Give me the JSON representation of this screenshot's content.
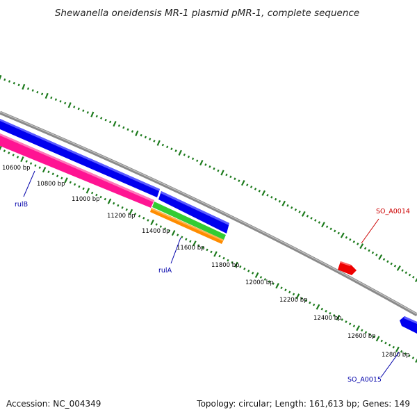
{
  "header": {
    "title": "Shewanella oneidensis MR-1 plasmid pMR-1, complete sequence"
  },
  "footer": {
    "accession": "Accession: NC_004349",
    "summary": "Topology: circular; Length: 161,613 bp; Genes: 149"
  },
  "colors": {
    "backbone": "#8a8a8a",
    "tick": "#1c7a1c",
    "forward_gene": "#0000ee",
    "reverse_gene": "#ff1493",
    "green_gene": "#33cc33",
    "orange_gene": "#ff8c00",
    "red_gene": "#ee0000",
    "label_blue": "#0000aa",
    "label_red": "#cc0000"
  },
  "scale_labels": [
    "10600 bp",
    "10800 bp",
    "11000 bp",
    "11200 bp",
    "11400 bp",
    "11600 bp",
    "11800 bp",
    "12000 bp",
    "12200 bp",
    "12400 bp",
    "12600 bp",
    "12800 bp"
  ],
  "genes": [
    {
      "name": "rulB",
      "color": "label_blue"
    },
    {
      "name": "rulA",
      "color": "label_blue"
    },
    {
      "name": "SO_A0014",
      "color": "label_red"
    },
    {
      "name": "SO_A0015",
      "color": "label_blue"
    }
  ]
}
